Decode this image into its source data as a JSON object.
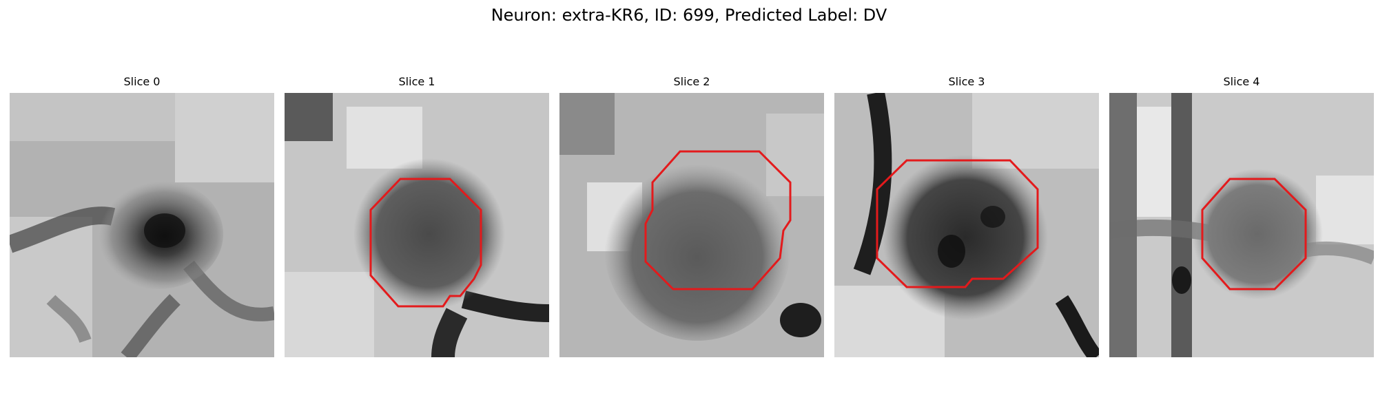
{
  "figure": {
    "title": "Neuron: extra-KR6, ID: 699, Predicted Label: DV"
  },
  "contour_color": "#e31a1c",
  "panels": [
    {
      "title": "Slice 0",
      "has_contour": false
    },
    {
      "title": "Slice 1",
      "has_contour": true
    },
    {
      "title": "Slice 2",
      "has_contour": true
    },
    {
      "title": "Slice 3",
      "has_contour": true
    },
    {
      "title": "Slice 4",
      "has_contour": true
    }
  ]
}
